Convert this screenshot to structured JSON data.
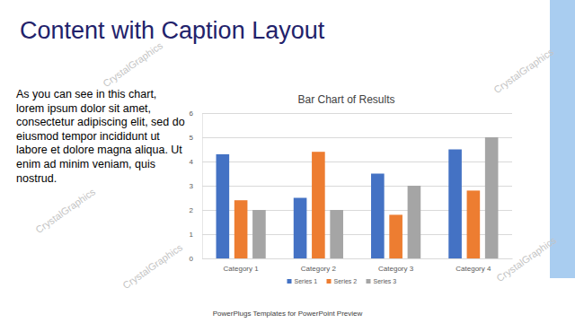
{
  "slide": {
    "title": "Content with Caption Layout",
    "caption": "As you can see in this chart, lorem ipsum dolor sit amet, consectetur adipiscing elit, sed do eiusmod tempor incididunt ut labore et dolore magna aliqua. Ut enim ad minim veniam, quis nostrud.",
    "footer": "PowerPlugs Templates for PowerPoint Preview",
    "watermark": "CrystalGraphics"
  },
  "chart_data": {
    "type": "bar",
    "title": "Bar Chart of Results",
    "categories": [
      "Category 1",
      "Category 2",
      "Category 3",
      "Category 4"
    ],
    "series": [
      {
        "name": "Series 1",
        "color": "#4472c4",
        "values": [
          4.3,
          2.5,
          3.5,
          4.5
        ]
      },
      {
        "name": "Series 2",
        "color": "#ed7d31",
        "values": [
          2.4,
          4.4,
          1.8,
          2.8
        ]
      },
      {
        "name": "Series 3",
        "color": "#a5a5a5",
        "values": [
          2.0,
          2.0,
          3.0,
          5.0
        ]
      }
    ],
    "ylim": [
      0,
      6
    ],
    "yticks": [
      0,
      1,
      2,
      3,
      4,
      5,
      6
    ],
    "grid": true,
    "legend": "bottom"
  }
}
